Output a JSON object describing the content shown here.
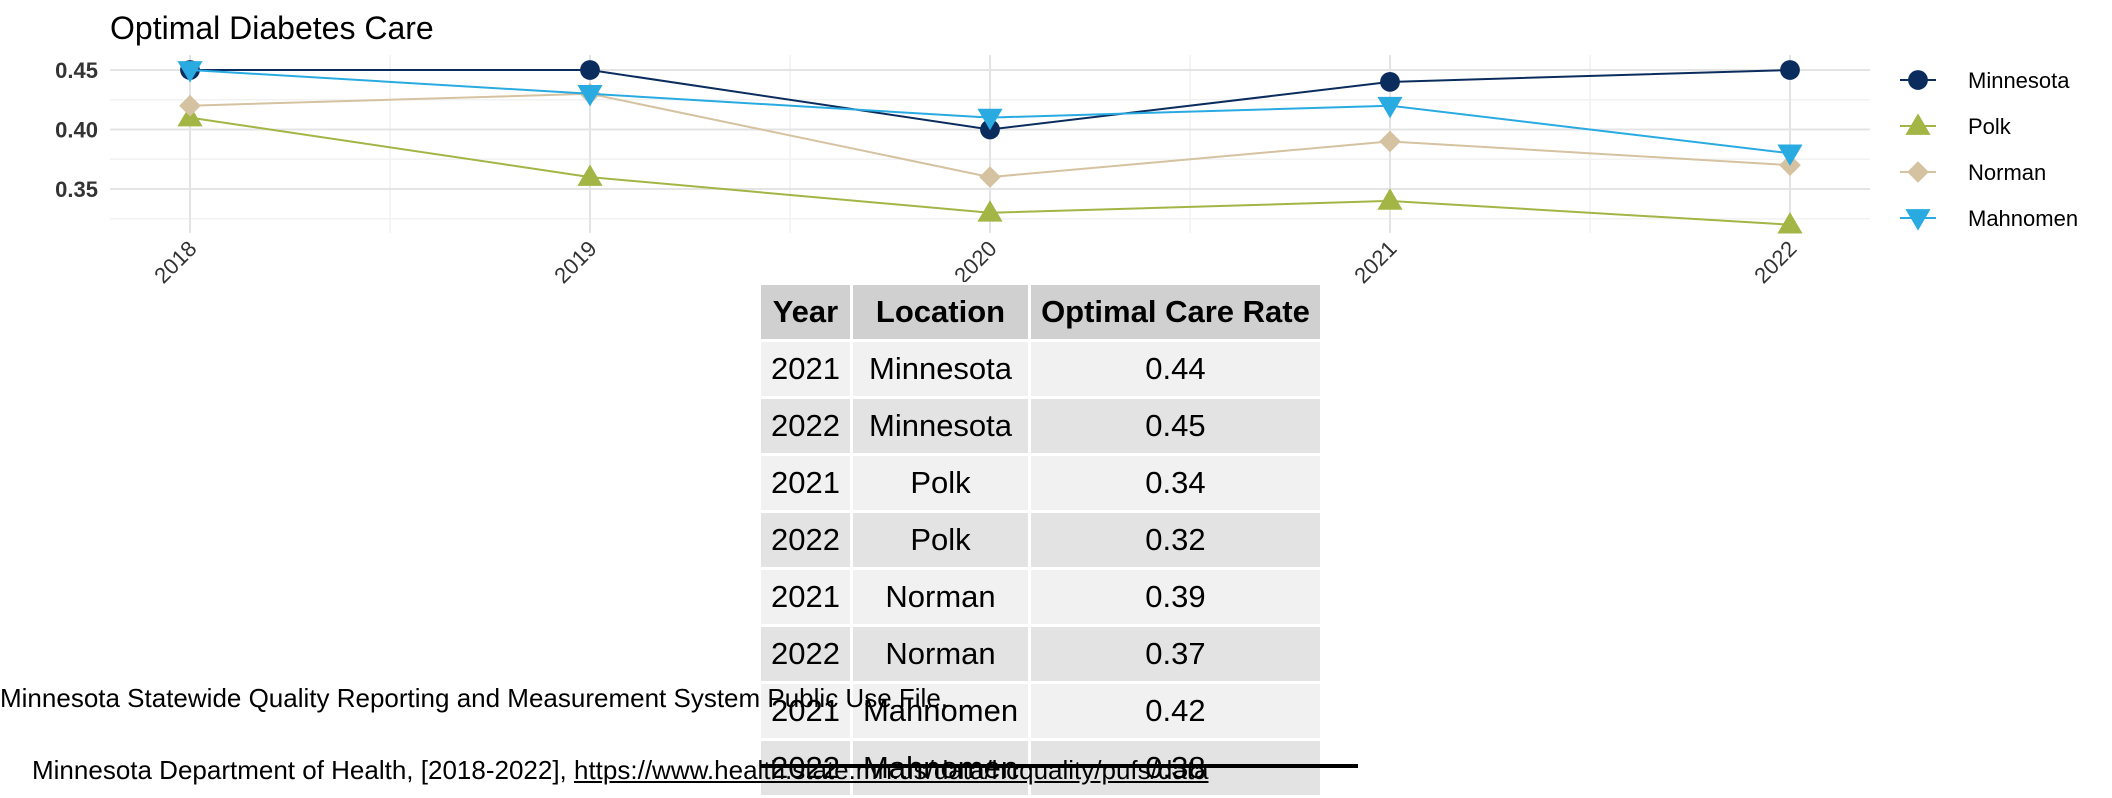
{
  "chart_data": {
    "type": "line",
    "title": "Optimal Diabetes Care",
    "xlabel": "",
    "ylabel": "",
    "categories": [
      "2018",
      "2019",
      "2020",
      "2021",
      "2022"
    ],
    "y_ticks": [
      "0.35",
      "0.40",
      "0.45"
    ],
    "ylim": [
      0.315,
      0.455
    ],
    "grid": true,
    "legend_position": "right",
    "series": [
      {
        "name": "Minnesota",
        "color": "#0b2d5e",
        "marker": "circle",
        "values": [
          0.45,
          0.45,
          0.4,
          0.44,
          0.45
        ]
      },
      {
        "name": "Polk",
        "color": "#a3b544",
        "marker": "triangle-up",
        "values": [
          0.41,
          0.36,
          0.33,
          0.34,
          0.32
        ]
      },
      {
        "name": "Norman",
        "color": "#d5c2a1",
        "marker": "diamond",
        "values": [
          0.42,
          0.43,
          0.36,
          0.39,
          0.37
        ]
      },
      {
        "name": "Mahnomen",
        "color": "#29abe2",
        "marker": "triangle-down",
        "values": [
          0.45,
          0.43,
          0.41,
          0.42,
          0.38
        ]
      }
    ]
  },
  "table": {
    "headers": [
      "Year",
      "Location",
      "Optimal Care Rate"
    ],
    "rows": [
      [
        "2021",
        "Minnesota",
        "0.44"
      ],
      [
        "2022",
        "Minnesota",
        "0.45"
      ],
      [
        "2021",
        "Polk",
        "0.34"
      ],
      [
        "2022",
        "Polk",
        "0.32"
      ],
      [
        "2021",
        "Norman",
        "0.39"
      ],
      [
        "2022",
        "Norman",
        "0.37"
      ],
      [
        "2021",
        "Mahnomen",
        "0.42"
      ],
      [
        "2022",
        "Mahnomen",
        "0.38"
      ]
    ]
  },
  "source": {
    "line1": "Minnesota Statewide Quality Reporting and Measurement System Public Use File,",
    "line2_prefix": "Minnesota Department of Health, [2018-2022], ",
    "line2_url": "https://www.health.state.mn.us/data/hcquality/pufs/data"
  }
}
